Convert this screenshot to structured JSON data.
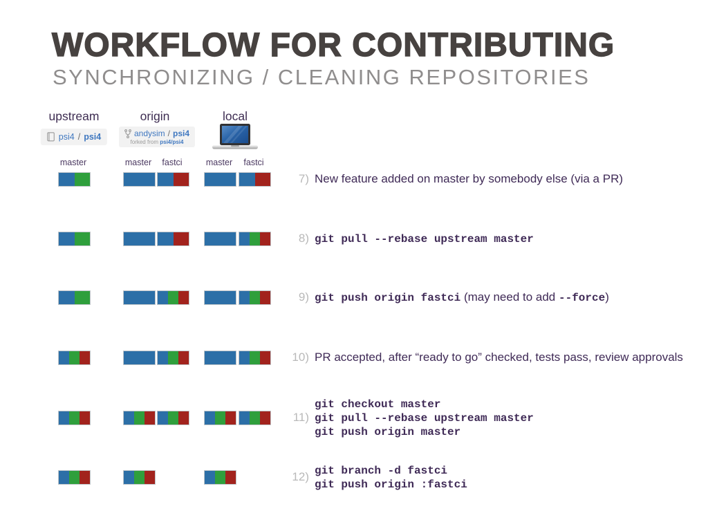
{
  "slide": {
    "title": "WORKFLOW FOR CONTRIBUTING",
    "subtitle": "SYNCHRONIZING / CLEANING REPOSITORIES"
  },
  "columns": [
    {
      "id": "upstream",
      "label": "upstream",
      "badge": {
        "type": "repo",
        "owner": "psi4",
        "separator": "/",
        "name": "psi4"
      }
    },
    {
      "id": "origin",
      "label": "origin",
      "badge": {
        "type": "fork",
        "owner": "andysim",
        "separator": "/",
        "name": "psi4",
        "forked_prefix": "forked from",
        "forked_from": "psi4/psi4"
      }
    },
    {
      "id": "local",
      "label": "local",
      "badge": {
        "type": "laptop"
      }
    }
  ],
  "branch_labels": [
    "master",
    "master",
    "fastci",
    "master",
    "fastci"
  ],
  "colors": {
    "blue": "#2c6fa7",
    "green": "#2f9f3c",
    "red": "#a2231d",
    "accent_purple": "#3f2a56",
    "step_number_gray": "#b9b9b9",
    "link_blue": "#4078c0"
  },
  "steps": [
    {
      "number": "7)",
      "bars": {
        "upstream.master": [
          "blue",
          "green"
        ],
        "origin.master": [
          "blue"
        ],
        "origin.fastci": [
          "blue",
          "red"
        ],
        "local.master": [
          "blue"
        ],
        "local.fastci": [
          "blue",
          "red"
        ]
      },
      "lines": [
        [
          {
            "text": "New feature added on master by somebody else (via a PR)",
            "style": "sans"
          }
        ]
      ]
    },
    {
      "number": "8)",
      "bars": {
        "upstream.master": [
          "blue",
          "green"
        ],
        "origin.master": [
          "blue"
        ],
        "origin.fastci": [
          "blue",
          "red"
        ],
        "local.master": [
          "blue"
        ],
        "local.fastci": [
          "blue",
          "green",
          "red"
        ]
      },
      "lines": [
        [
          {
            "text": "git pull --rebase upstream master",
            "style": "mono"
          }
        ]
      ]
    },
    {
      "number": "9)",
      "bars": {
        "upstream.master": [
          "blue",
          "green"
        ],
        "origin.master": [
          "blue"
        ],
        "origin.fastci": [
          "blue",
          "green",
          "red"
        ],
        "local.master": [
          "blue"
        ],
        "local.fastci": [
          "blue",
          "green",
          "red"
        ]
      },
      "lines": [
        [
          {
            "text": "git push origin fastci",
            "style": "mono"
          },
          {
            "text": " (may need to add ",
            "style": "sans"
          },
          {
            "text": "--force",
            "style": "mono"
          },
          {
            "text": ")",
            "style": "sans"
          }
        ]
      ]
    },
    {
      "number": "10)",
      "bars": {
        "upstream.master": [
          "blue",
          "green",
          "red"
        ],
        "origin.master": [
          "blue"
        ],
        "origin.fastci": [
          "blue",
          "green",
          "red"
        ],
        "local.master": [
          "blue"
        ],
        "local.fastci": [
          "blue",
          "green",
          "red"
        ]
      },
      "lines": [
        [
          {
            "text": "PR accepted, after “ready to go” checked, tests pass, review approvals",
            "style": "sans"
          }
        ]
      ]
    },
    {
      "number": "11)",
      "bars": {
        "upstream.master": [
          "blue",
          "green",
          "red"
        ],
        "origin.master": [
          "blue",
          "green",
          "red"
        ],
        "origin.fastci": [
          "blue",
          "green",
          "red"
        ],
        "local.master": [
          "blue",
          "green",
          "red"
        ],
        "local.fastci": [
          "blue",
          "green",
          "red"
        ]
      },
      "lines": [
        [
          {
            "text": "git checkout master",
            "style": "mono"
          }
        ],
        [
          {
            "text": "git pull --rebase upstream master",
            "style": "mono"
          }
        ],
        [
          {
            "text": "git push origin master",
            "style": "mono"
          }
        ]
      ]
    },
    {
      "number": "12)",
      "bars": {
        "upstream.master": [
          "blue",
          "green",
          "red"
        ],
        "origin.master": [
          "blue",
          "green",
          "red"
        ],
        "local.master": [
          "blue",
          "green",
          "red"
        ]
      },
      "lines": [
        [
          {
            "text": "git branch -d fastci",
            "style": "mono"
          }
        ],
        [
          {
            "text": "git push origin :fastci",
            "style": "mono"
          }
        ]
      ]
    }
  ]
}
